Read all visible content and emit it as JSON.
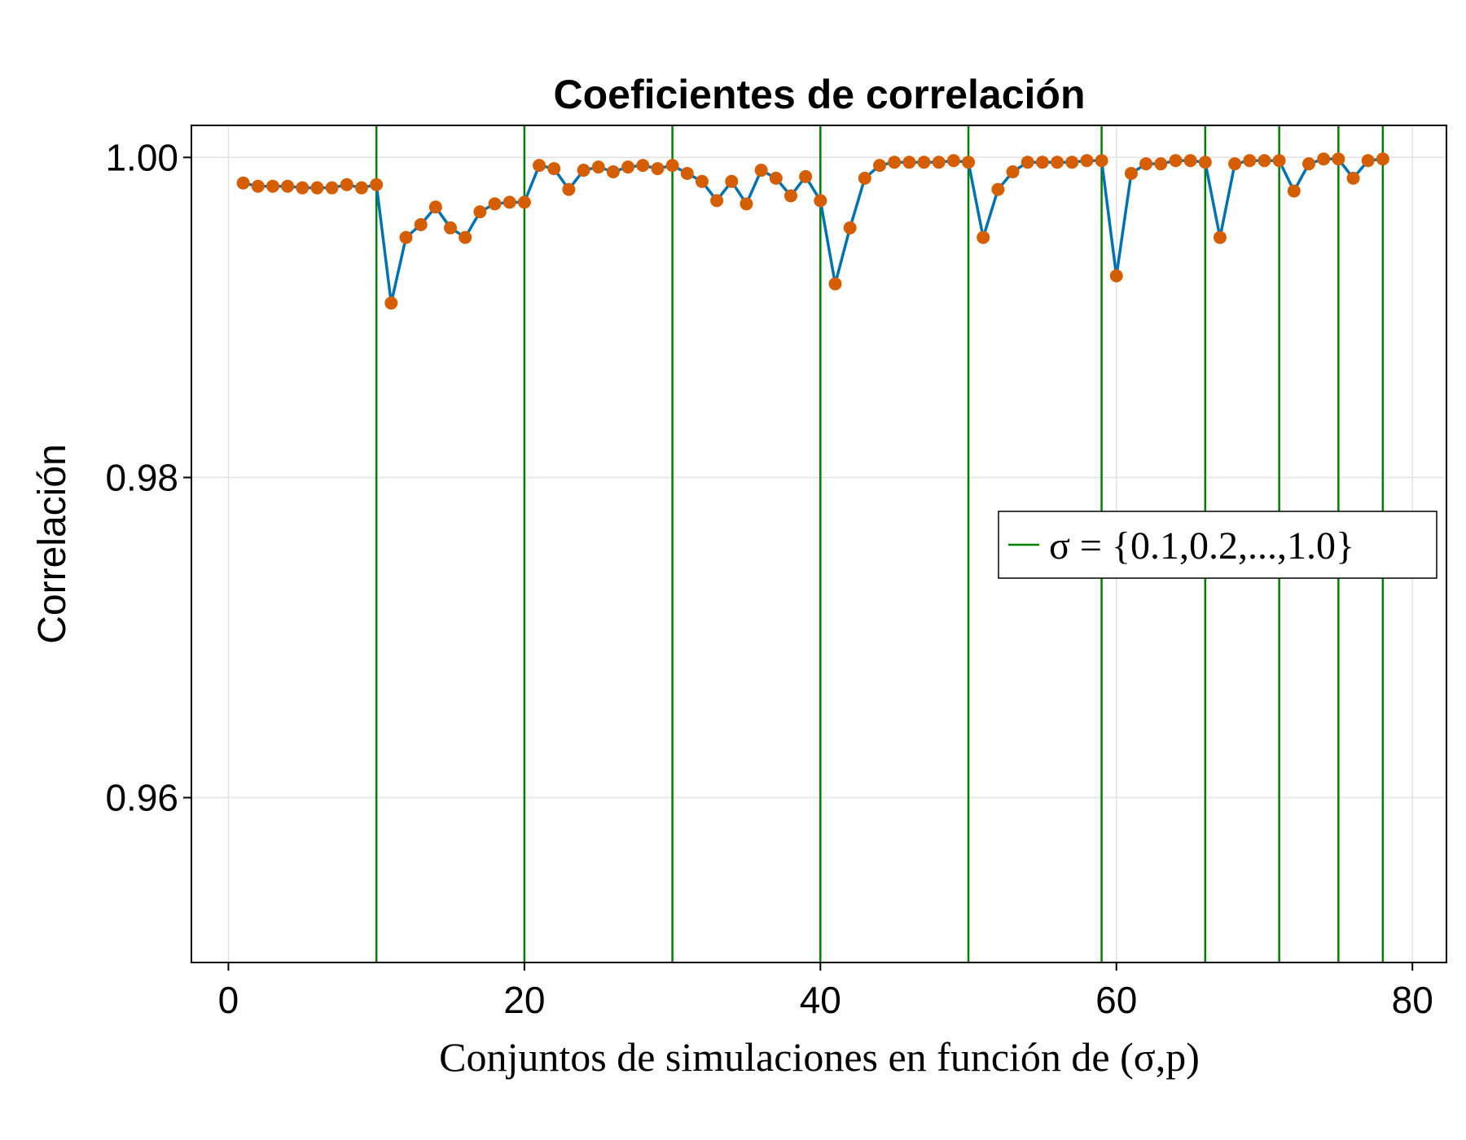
{
  "chart_data": {
    "type": "line",
    "title": "Coeficientes de correlación",
    "xlabel": "Conjuntos de simulaciones en función de (σ,p)",
    "ylabel": "Correlación",
    "xlim": [
      -2.5,
      82.3
    ],
    "ylim": [
      0.9497,
      1.002
    ],
    "xticks": [
      0,
      20,
      40,
      60,
      80
    ],
    "xtick_labels": [
      "0",
      "20",
      "40",
      "60",
      "80"
    ],
    "yticks": [
      0.96,
      0.98,
      1.0
    ],
    "ytick_labels": [
      "0.96",
      "0.98",
      "1.00"
    ],
    "grid": true,
    "series": [
      {
        "kind": "line+scatter",
        "line_color": "#0072b2",
        "marker_color": "#d55e00",
        "x": [
          1,
          2,
          3,
          4,
          5,
          6,
          7,
          8,
          9,
          10,
          11,
          12,
          13,
          14,
          15,
          16,
          17,
          18,
          19,
          20,
          21,
          22,
          23,
          24,
          25,
          26,
          27,
          28,
          29,
          30,
          31,
          32,
          33,
          34,
          35,
          36,
          37,
          38,
          39,
          40,
          41,
          42,
          43,
          44,
          45,
          46,
          47,
          48,
          49,
          50,
          51,
          52,
          53,
          54,
          55,
          56,
          57,
          58,
          59,
          60,
          61,
          62,
          63,
          64,
          65,
          66,
          67,
          68,
          69,
          70,
          71,
          72,
          73,
          74,
          75,
          76,
          77,
          78
        ],
        "y": [
          0.9984,
          0.9982,
          0.9982,
          0.9982,
          0.9981,
          0.9981,
          0.9981,
          0.9983,
          0.9981,
          0.9983,
          0.9909,
          0.995,
          0.9958,
          0.9969,
          0.9956,
          0.995,
          0.9966,
          0.9971,
          0.9972,
          0.9972,
          0.9995,
          0.9993,
          0.998,
          0.9992,
          0.9994,
          0.9991,
          0.9994,
          0.9995,
          0.9993,
          0.9995,
          0.999,
          0.9985,
          0.9973,
          0.9985,
          0.9971,
          0.9992,
          0.9987,
          0.9976,
          0.9988,
          0.9973,
          0.9921,
          0.9956,
          0.9987,
          0.9995,
          0.9997,
          0.9997,
          0.9997,
          0.9997,
          0.9998,
          0.9997,
          0.995,
          0.998,
          0.9991,
          0.9997,
          0.9997,
          0.9997,
          0.9997,
          0.9998,
          0.9998,
          0.9926,
          0.999,
          0.9996,
          0.9996,
          0.9998,
          0.9998,
          0.9997,
          0.995,
          0.9996,
          0.9998,
          0.9998,
          0.9998,
          0.9979,
          0.9996,
          0.9999,
          0.9999,
          0.9987,
          0.9998,
          0.9999
        ]
      }
    ],
    "vlines": {
      "color": "#008000",
      "x": [
        10,
        20,
        30,
        40,
        50,
        59,
        66,
        71,
        75,
        78
      ],
      "legend_label": "σ = {0.1,0.2,...,1.0}"
    },
    "legend_position": "right"
  }
}
